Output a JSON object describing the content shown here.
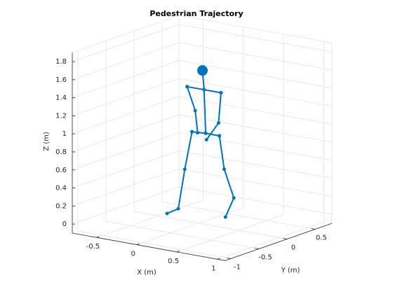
{
  "chart_data": {
    "type": "line3d",
    "title": "Pedestrian Trajectory",
    "xlabel": "X (m)",
    "ylabel": "Y (m)",
    "zlabel": "Z (m)",
    "xlim": [
      -0.8,
      1.1
    ],
    "ylim": [
      -1.1,
      0.8
    ],
    "zlim": [
      -0.1,
      1.9
    ],
    "xticks": [
      -0.5,
      0,
      0.5,
      1
    ],
    "yticks": [
      -1,
      -0.5,
      0,
      0.5
    ],
    "zticks": [
      0,
      0.2,
      0.4,
      0.6,
      0.8,
      1,
      1.2,
      1.4,
      1.6,
      1.8
    ],
    "grid": true,
    "series": [
      {
        "color": "#0072bd",
        "marker_size": 2,
        "x": [
          0.05,
          0.07,
          0.09
        ],
        "y": [
          0,
          0,
          0
        ],
        "z": [
          1.6,
          1.39,
          0.91
        ]
      },
      {
        "color": "#0072bd",
        "marker_size": 2,
        "x": [
          -0.14,
          0.07,
          0.28
        ],
        "y": [
          0,
          0,
          0
        ],
        "z": [
          1.39,
          1.39,
          1.39
        ]
      },
      {
        "color": "#0072bd",
        "marker_size": 2,
        "x": [
          -0.14,
          -0.04,
          -0.01
        ],
        "y": [
          0,
          0,
          0
        ],
        "z": [
          1.39,
          1.14,
          0.9
        ]
      },
      {
        "color": "#0072bd",
        "marker_size": 2,
        "x": [
          0.28,
          0.25,
          0.1
        ],
        "y": [
          0,
          0,
          0
        ],
        "z": [
          1.39,
          1.05,
          0.84
        ]
      },
      {
        "color": "#0072bd",
        "marker_size": 2,
        "x": [
          -0.08,
          0.09,
          0.26
        ],
        "y": [
          0,
          0,
          0
        ],
        "z": [
          0.9,
          0.91,
          0.91
        ]
      },
      {
        "color": "#0072bd",
        "marker_size": 2,
        "x": [
          -0.08,
          -0.17,
          -0.25,
          -0.25
        ],
        "y": [
          0,
          0,
          0,
          -0.2
        ],
        "z": [
          0.9,
          0.47,
          0.02,
          0.01
        ]
      },
      {
        "color": "#0072bd",
        "marker_size": 2,
        "x": [
          0.26,
          0.32,
          0.44,
          0.44
        ],
        "y": [
          0,
          0,
          0,
          -0.15
        ],
        "z": [
          0.91,
          0.55,
          0.25,
          0.07
        ]
      },
      {
        "color": "#0072bd",
        "marker_size": 7,
        "x": [
          0.05
        ],
        "y": [
          0
        ],
        "z": [
          1.6
        ]
      }
    ]
  }
}
